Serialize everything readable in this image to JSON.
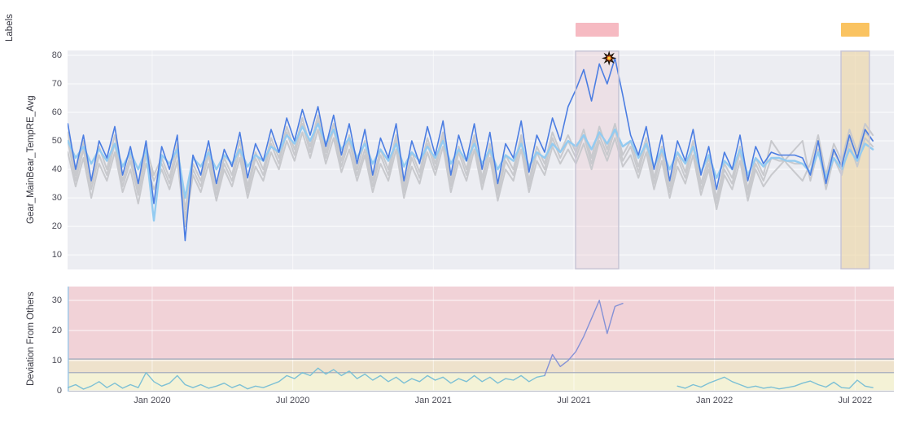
{
  "labels_track": {
    "title": "Labels",
    "items": [
      {
        "name": "alarm-label",
        "color": "#f6bac2",
        "t_start": 2021.506,
        "t_end": 2021.659
      },
      {
        "name": "warning-label",
        "color": "#fac361",
        "t_start": 2022.45,
        "t_end": 2022.551
      }
    ]
  },
  "x_axis": {
    "range": [
      2019.699,
      2022.638
    ],
    "tick_values": [
      2020.0,
      2020.5,
      2021.0,
      2021.5,
      2022.0,
      2022.5
    ],
    "tick_labels": [
      "Jan 2020",
      "Jul 2020",
      "Jan 2021",
      "Jul 2021",
      "Jan 2022",
      "Jul 2022"
    ]
  },
  "chart_data": [
    {
      "id": "main",
      "type": "line",
      "ylabel": "Gear_MainBear_TempRE_Avg",
      "ylim": [
        4.9,
        81.7
      ],
      "yticks": [
        10,
        20,
        30,
        40,
        50,
        60,
        70,
        80
      ],
      "grid": true,
      "legend": "none",
      "t_start": 2019.7,
      "t_step": 0.0278,
      "highlight_regions": [
        {
          "kind": "alarm-period",
          "t_start": 2021.506,
          "t_end": 2021.659,
          "fill": "rgba(238,192,202,0.28)",
          "border": "#c9c6d6"
        },
        {
          "kind": "warning-period",
          "t_start": 2022.45,
          "t_end": 2022.551,
          "fill": "rgba(236,212,160,0.60)",
          "border": "#c9c6d6"
        }
      ],
      "event_marker": {
        "name": "anomaly-flare",
        "t": 2021.625,
        "value": 79
      },
      "series": [
        {
          "name": "other-turbine-a",
          "color": "#c8c9cd",
          "width": 2,
          "values": [
            53,
            38,
            50,
            35,
            48,
            40,
            52,
            36,
            45,
            33,
            48,
            38,
            44,
            37,
            49,
            26,
            42,
            36,
            47,
            33,
            44,
            38,
            50,
            34,
            46,
            40,
            51,
            44,
            55,
            47,
            58,
            48,
            59,
            46,
            56,
            43,
            52,
            40,
            50,
            36,
            47,
            40,
            52,
            34,
            46,
            39,
            51,
            42,
            53,
            36,
            48,
            40,
            52,
            37,
            49,
            33,
            45,
            40,
            52,
            36,
            48,
            42,
            53,
            46,
            52,
            46,
            54,
            44,
            55,
            47,
            56,
            45,
            50,
            41,
            51,
            37,
            48,
            34,
            46,
            39,
            50,
            35,
            44,
            30,
            42,
            37,
            48,
            33,
            44,
            38,
            50,
            46,
            42,
            39,
            36,
            42,
            52,
            38,
            49,
            43,
            54,
            46,
            56,
            52
          ]
        },
        {
          "name": "other-turbine-b",
          "color": "#c8c9cd",
          "width": 2,
          "values": [
            46,
            34,
            44,
            30,
            42,
            36,
            46,
            32,
            40,
            28,
            42,
            33,
            40,
            33,
            43,
            20,
            38,
            32,
            42,
            29,
            40,
            34,
            44,
            30,
            41,
            36,
            46,
            40,
            50,
            43,
            53,
            44,
            54,
            42,
            51,
            39,
            47,
            36,
            45,
            32,
            42,
            36,
            47,
            30,
            41,
            35,
            46,
            38,
            48,
            32,
            43,
            36,
            47,
            33,
            44,
            29,
            40,
            36,
            47,
            32,
            43,
            38,
            48,
            42,
            47,
            42,
            49,
            40,
            50,
            43,
            51,
            41,
            45,
            37,
            46,
            33,
            43,
            30,
            41,
            35,
            45,
            31,
            40,
            26,
            38,
            33,
            43,
            29,
            40,
            34,
            38,
            41,
            44,
            47,
            50,
            36,
            47,
            33,
            44,
            38,
            49,
            41,
            51,
            48
          ]
        },
        {
          "name": "other-turbine-c",
          "color": "#c8c9cd",
          "width": 2,
          "values": [
            50,
            36,
            47,
            33,
            45,
            38,
            49,
            34,
            43,
            31,
            45,
            36,
            42,
            35,
            46,
            23,
            40,
            34,
            45,
            31,
            42,
            36,
            47,
            32,
            44,
            38,
            49,
            42,
            53,
            45,
            56,
            46,
            57,
            44,
            54,
            41,
            50,
            38,
            47,
            34,
            45,
            38,
            50,
            32,
            44,
            37,
            49,
            40,
            51,
            34,
            46,
            38,
            50,
            35,
            47,
            31,
            43,
            38,
            50,
            34,
            46,
            40,
            51,
            44,
            50,
            44,
            52,
            42,
            52,
            45,
            54,
            43,
            48,
            39,
            49,
            35,
            46,
            32,
            44,
            37,
            48,
            33,
            42,
            28,
            40,
            35,
            46,
            31,
            42,
            36,
            44,
            43,
            43,
            42,
            42,
            39,
            50,
            36,
            46,
            41,
            51,
            44,
            53,
            50
          ]
        },
        {
          "name": "fleet-average",
          "color": "#93cbf1",
          "width": 2.4,
          "values": [
            50,
            44,
            48,
            42,
            47,
            43,
            49,
            41,
            46,
            40,
            47,
            22,
            45,
            42,
            47,
            30,
            44,
            41,
            46,
            40,
            45,
            42,
            47,
            41,
            45,
            43,
            48,
            46,
            52,
            49,
            55,
            50,
            56,
            49,
            54,
            47,
            51,
            44,
            49,
            42,
            47,
            43,
            49,
            41,
            46,
            43,
            48,
            44,
            50,
            42,
            47,
            43,
            49,
            42,
            47,
            40,
            45,
            43,
            49,
            41,
            46,
            44,
            49,
            46,
            50,
            48,
            52,
            47,
            53,
            49,
            54,
            48,
            50,
            44,
            49,
            41,
            47,
            40,
            46,
            42,
            48,
            39,
            45,
            37,
            43,
            40,
            47,
            38,
            44,
            41,
            44,
            44,
            43,
            43,
            42,
            39,
            46,
            37,
            44,
            40,
            47,
            43,
            49,
            47
          ]
        },
        {
          "name": "selected-turbine",
          "color": "#4b7de2",
          "width": 1.6,
          "values": [
            56,
            40,
            52,
            36,
            50,
            44,
            55,
            38,
            48,
            35,
            50,
            28,
            48,
            40,
            52,
            15,
            45,
            38,
            50,
            35,
            47,
            41,
            53,
            37,
            49,
            43,
            54,
            46,
            58,
            50,
            61,
            52,
            62,
            48,
            59,
            45,
            56,
            42,
            54,
            38,
            51,
            44,
            56,
            36,
            50,
            42,
            55,
            45,
            57,
            38,
            52,
            43,
            56,
            40,
            53,
            35,
            49,
            44,
            57,
            39,
            52,
            46,
            58,
            50,
            62,
            68,
            75,
            64,
            77,
            70,
            79,
            66,
            52,
            45,
            55,
            40,
            52,
            36,
            50,
            43,
            54,
            38,
            48,
            33,
            46,
            40,
            52,
            36,
            48,
            42,
            46,
            45,
            45,
            45,
            44,
            38,
            50,
            35,
            47,
            41,
            52,
            44,
            54,
            50
          ]
        }
      ]
    },
    {
      "id": "deviation",
      "type": "line",
      "ylabel": "Deviation From Others",
      "ylim": [
        -0.3,
        34.6
      ],
      "yticks": [
        0,
        10,
        20,
        30
      ],
      "grid": true,
      "t_start": 2019.7,
      "t_step": 0.0278,
      "thresholds": {
        "warning": 6,
        "alarm": 10.5,
        "line_color": "#a6adbf"
      },
      "bands": [
        {
          "name": "alarm-zone",
          "from": 10.5,
          "to": 34.6,
          "color": "#f1d2d7"
        },
        {
          "name": "warning-zone",
          "from": 6,
          "to": 10.5,
          "color": "#eee2cc"
        },
        {
          "name": "normal-zone",
          "from": -0.3,
          "to": 6,
          "color": "#f4f2d6"
        }
      ],
      "axis_line_color": "#a5cbe9",
      "series": [
        {
          "name": "deviation-from-others",
          "color": "#7cc0d5",
          "spike_color": "#8491d6",
          "spike_threshold": 9.5,
          "width": 1.4,
          "values": [
            1,
            2,
            0.5,
            1.5,
            3,
            1,
            2.5,
            0.8,
            2,
            1,
            6,
            3,
            1.5,
            2.5,
            5,
            2,
            1,
            2,
            0.8,
            1.5,
            2.5,
            1,
            2,
            0.6,
            1.5,
            1,
            2,
            3,
            5,
            4,
            6,
            5,
            7.5,
            5.5,
            7,
            5,
            6.5,
            4,
            5.5,
            3.5,
            5,
            3,
            4.5,
            2.5,
            4,
            3,
            5,
            3.5,
            4.5,
            2.5,
            4,
            3,
            5,
            3,
            4.5,
            2.5,
            4,
            3.5,
            5,
            3,
            4.5,
            5,
            12,
            8,
            10,
            13,
            18,
            24,
            30,
            19,
            28,
            29,
            null,
            null,
            null,
            null,
            null,
            null,
            1.5,
            0.8,
            2,
            1.2,
            2.5,
            3.5,
            4.5,
            3,
            2,
            1,
            1.5,
            0.8,
            1.2,
            0.6,
            1,
            1.5,
            2.5,
            3.2,
            2,
            1.2,
            2.8,
            1,
            0.8,
            3.5,
            1.5,
            1
          ]
        }
      ]
    }
  ]
}
